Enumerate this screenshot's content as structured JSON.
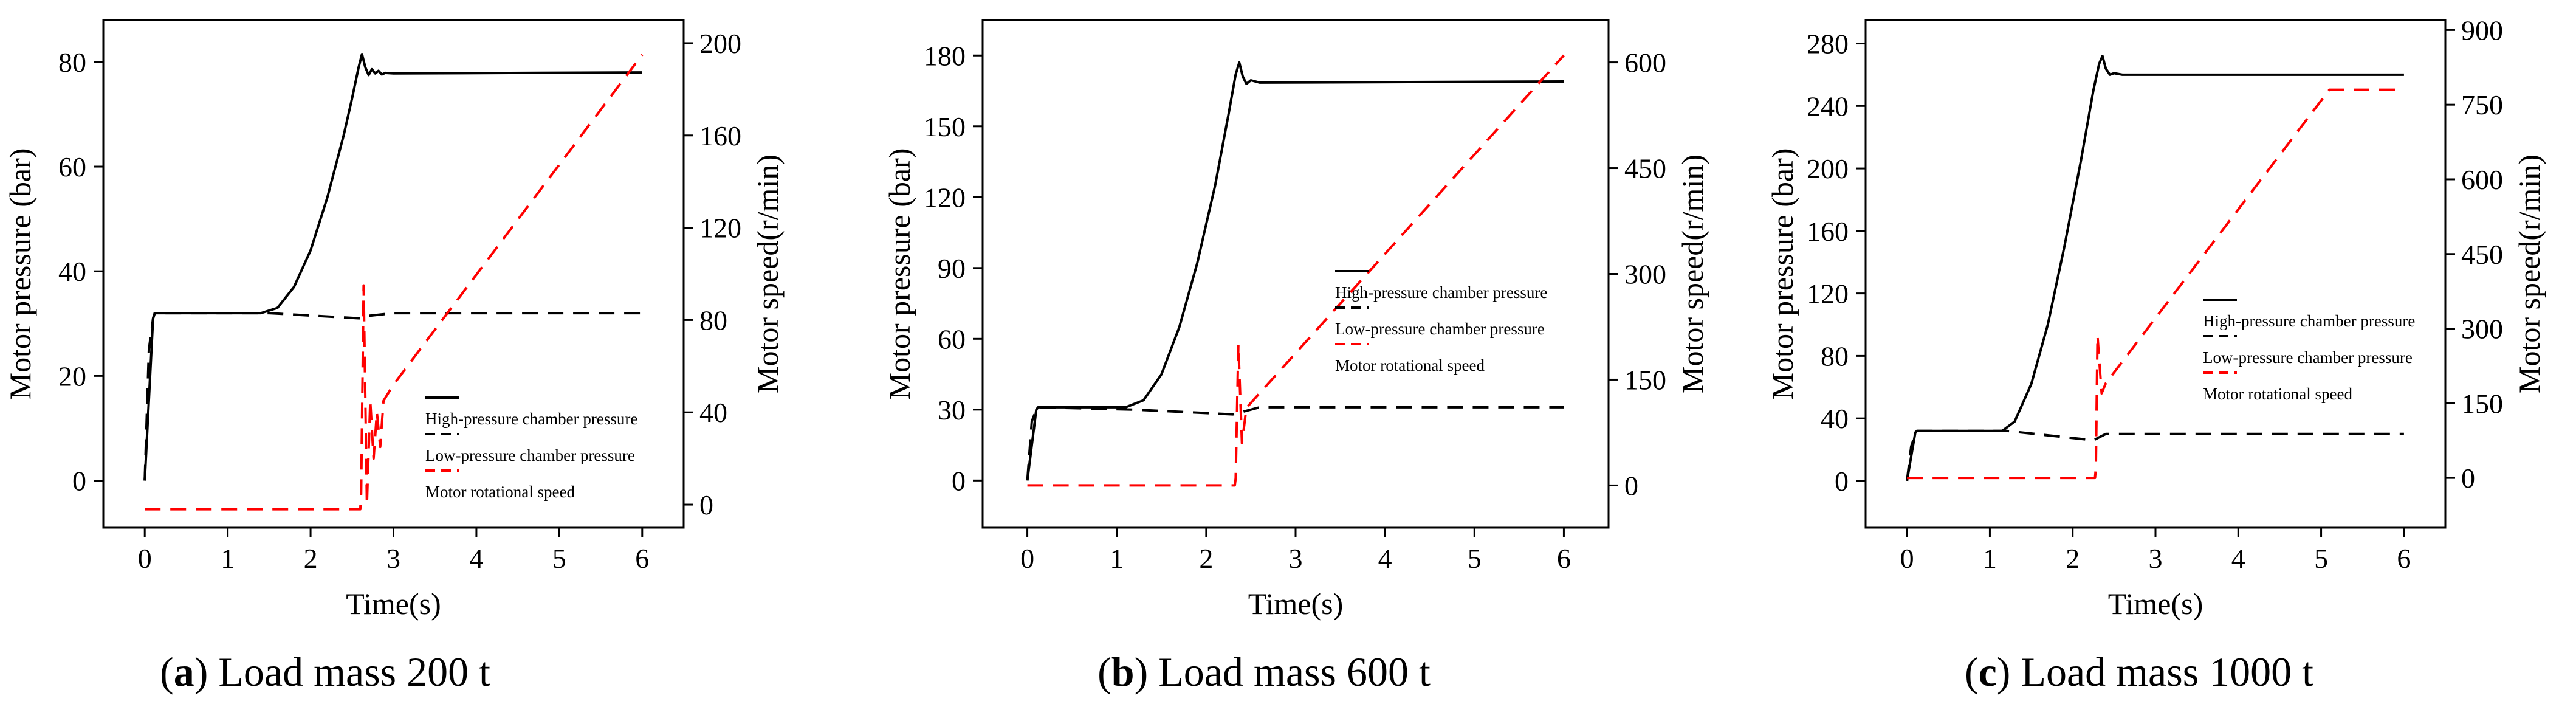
{
  "chart_data": [
    {
      "type": "line",
      "panel_letter": "a",
      "caption": "Load mass 200 t",
      "xlabel": "Time(s)",
      "ylabel_left": "Motor pressure (bar)",
      "ylabel_right": "Motor speed(r/min)",
      "xlim": [
        -0.5,
        6.5
      ],
      "xticks": [
        0,
        1,
        2,
        3,
        4,
        5,
        6
      ],
      "ylim_left": [
        -9,
        88
      ],
      "yticks_left": [
        0,
        20,
        40,
        60,
        80
      ],
      "ylim_right": [
        -10,
        210
      ],
      "yticks_right": [
        0,
        40,
        80,
        120,
        160,
        200
      ],
      "legend": [
        "High-pressure chamber pressure",
        "Low-pressure chamber pressure",
        "Motor rotational speed"
      ],
      "series": [
        {
          "name": "High-pressure chamber pressure",
          "axis": "left",
          "style": "solid",
          "color": "#000000",
          "x": [
            0,
            0.1,
            0.12,
            1.4,
            1.6,
            1.8,
            2.0,
            2.2,
            2.4,
            2.5,
            2.58,
            2.62,
            2.66,
            2.7,
            2.74,
            2.78,
            2.82,
            2.86,
            2.9,
            3.0,
            6.0
          ],
          "y": [
            0,
            31,
            32,
            32,
            33,
            37,
            44,
            54,
            66,
            73,
            79,
            81.5,
            79,
            77.5,
            78.6,
            77.8,
            78.3,
            77.6,
            77.9,
            77.8,
            78
          ]
        },
        {
          "name": "Low-pressure chamber pressure",
          "axis": "left",
          "style": "dashed",
          "color": "#000000",
          "x": [
            0,
            0.05,
            0.1,
            0.12,
            1.5,
            2.6,
            2.7,
            3.0,
            6.0
          ],
          "y": [
            0,
            25,
            31,
            32,
            32,
            31,
            31.5,
            32,
            32
          ]
        },
        {
          "name": "Motor rotational speed",
          "axis": "right",
          "style": "dashed",
          "color": "#ff0000",
          "x": [
            0,
            2.6,
            2.61,
            2.64,
            2.68,
            2.72,
            2.76,
            2.8,
            2.84,
            2.88,
            3.0,
            6.0
          ],
          "y": [
            -2,
            -2,
            5,
            95,
            0,
            45,
            20,
            40,
            25,
            45,
            52,
            195
          ]
        }
      ]
    },
    {
      "type": "line",
      "panel_letter": "b",
      "caption": "Load mass 600 t",
      "xlabel": "Time(s)",
      "ylabel_left": "Motor pressure (bar)",
      "ylabel_right": "Motor speed(r/min)",
      "xlim": [
        -0.5,
        6.5
      ],
      "xticks": [
        0,
        1,
        2,
        3,
        4,
        5,
        6
      ],
      "ylim_left": [
        -20,
        195
      ],
      "yticks_left": [
        0,
        30,
        60,
        90,
        120,
        150,
        180
      ],
      "ylim_right": [
        -60,
        660
      ],
      "yticks_right": [
        0,
        150,
        300,
        450,
        600
      ],
      "legend": [
        "High-pressure chamber pressure",
        "Low-pressure chamber pressure",
        "Motor rotational speed"
      ],
      "series": [
        {
          "name": "High-pressure chamber pressure",
          "axis": "left",
          "style": "solid",
          "color": "#000000",
          "x": [
            0,
            0.1,
            0.12,
            1.1,
            1.3,
            1.5,
            1.7,
            1.9,
            2.1,
            2.25,
            2.33,
            2.37,
            2.41,
            2.45,
            2.5,
            2.6,
            6.0
          ],
          "y": [
            0,
            30,
            31,
            31,
            34,
            45,
            65,
            92,
            125,
            155,
            172,
            177,
            171,
            168,
            169.5,
            168.5,
            169
          ]
        },
        {
          "name": "Low-pressure chamber pressure",
          "axis": "left",
          "style": "dashed",
          "color": "#000000",
          "x": [
            0,
            0.05,
            0.1,
            0.12,
            1.2,
            2.3,
            2.4,
            2.6,
            6.0
          ],
          "y": [
            0,
            25,
            30,
            31,
            30,
            28,
            29,
            31,
            31
          ]
        },
        {
          "name": "Motor rotational speed",
          "axis": "right",
          "style": "dashed",
          "color": "#ff0000",
          "x": [
            0,
            2.32,
            2.33,
            2.36,
            2.4,
            2.45,
            6.0
          ],
          "y": [
            0,
            0,
            10,
            200,
            60,
            110,
            610
          ]
        }
      ]
    },
    {
      "type": "line",
      "panel_letter": "c",
      "caption": "Load mass 1000 t",
      "xlabel": "Time(s)",
      "ylabel_left": "Motor pressure (bar)",
      "ylabel_right": "Motor speed(r/min)",
      "xlim": [
        -0.5,
        6.5
      ],
      "xticks": [
        0,
        1,
        2,
        3,
        4,
        5,
        6
      ],
      "ylim_left": [
        -30,
        295
      ],
      "yticks_left": [
        0,
        40,
        80,
        120,
        160,
        200,
        240,
        280
      ],
      "ylim_right": [
        -100,
        920
      ],
      "yticks_right": [
        0,
        150,
        300,
        450,
        600,
        750,
        900
      ],
      "legend": [
        "High-pressure chamber pressure",
        "Low-pressure chamber pressure",
        "Motor rotational speed"
      ],
      "series": [
        {
          "name": "High-pressure chamber pressure",
          "axis": "left",
          "style": "solid",
          "color": "#000000",
          "x": [
            0,
            0.1,
            0.12,
            1.15,
            1.3,
            1.5,
            1.7,
            1.9,
            2.1,
            2.25,
            2.32,
            2.36,
            2.4,
            2.45,
            2.5,
            2.6,
            6.0
          ],
          "y": [
            0,
            31,
            32,
            32,
            38,
            62,
            100,
            150,
            205,
            250,
            267,
            272,
            264,
            260,
            261,
            260,
            260
          ]
        },
        {
          "name": "Low-pressure chamber pressure",
          "axis": "left",
          "style": "dashed",
          "color": "#000000",
          "x": [
            0,
            0.05,
            0.1,
            0.12,
            1.2,
            2.25,
            2.4,
            6.0
          ],
          "y": [
            0,
            22,
            30,
            32,
            32,
            26,
            30,
            30
          ]
        },
        {
          "name": "Motor rotational speed",
          "axis": "right",
          "style": "dashed",
          "color": "#ff0000",
          "x": [
            0,
            2.27,
            2.28,
            2.3,
            2.35,
            2.4,
            5.1,
            6.0
          ],
          "y": [
            0,
            0,
            20,
            285,
            170,
            190,
            780,
            780
          ]
        }
      ]
    }
  ]
}
